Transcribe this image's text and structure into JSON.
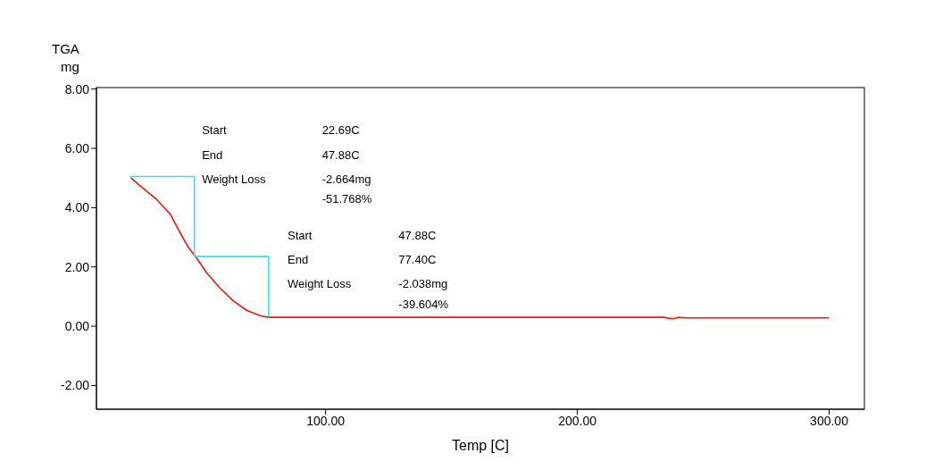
{
  "chart_data": {
    "type": "line",
    "title": "TGA",
    "ylabel": "mg",
    "xlabel": "Temp [C]",
    "xlim": [
      9,
      314
    ],
    "xticks": [
      {
        "value": 100,
        "label": "100.00"
      },
      {
        "value": 200,
        "label": "200.00"
      },
      {
        "value": 300,
        "label": "300.00"
      }
    ],
    "ylim": [
      -2.8,
      8.05
    ],
    "yticks": [
      {
        "value": -2,
        "label": "-2.00"
      },
      {
        "value": 0,
        "label": "0.00"
      },
      {
        "value": 2,
        "label": "2.00"
      },
      {
        "value": 4,
        "label": "4.00"
      },
      {
        "value": 6,
        "label": "6.00"
      },
      {
        "value": 8,
        "label": "8.00"
      }
    ],
    "grid": false,
    "series": [
      {
        "color": "#e8190e",
        "x": [
          22.69,
          27.6,
          33,
          38.4,
          42,
          45.5,
          48.7,
          52.7,
          58,
          63.4,
          68.8,
          74.2,
          77.4,
          100,
          150,
          200,
          234,
          238,
          240,
          243,
          250,
          300
        ],
        "values": [
          5.0,
          4.65,
          4.27,
          3.77,
          3.19,
          2.66,
          2.31,
          1.81,
          1.29,
          0.85,
          0.53,
          0.35,
          0.3,
          0.3,
          0.3,
          0.3,
          0.3,
          0.25,
          0.3,
          0.28,
          0.28,
          0.28
        ]
      },
      {
        "color": "#33e0f0",
        "x": [
          22.69,
          22.69,
          47.88,
          47.88,
          77.4,
          77.4
        ],
        "values": [
          5.0,
          5.05,
          5.05,
          2.35,
          2.35,
          0.3
        ]
      }
    ],
    "annotations": [
      "Start",
      "22.69C",
      "End",
      "47.88C",
      "Weight Loss",
      "-2.664mg",
      "-51.768%",
      "Start",
      "47.88C",
      "End",
      "77.40C",
      "Weight Loss",
      "-2.038mg",
      "-39.604%"
    ]
  }
}
